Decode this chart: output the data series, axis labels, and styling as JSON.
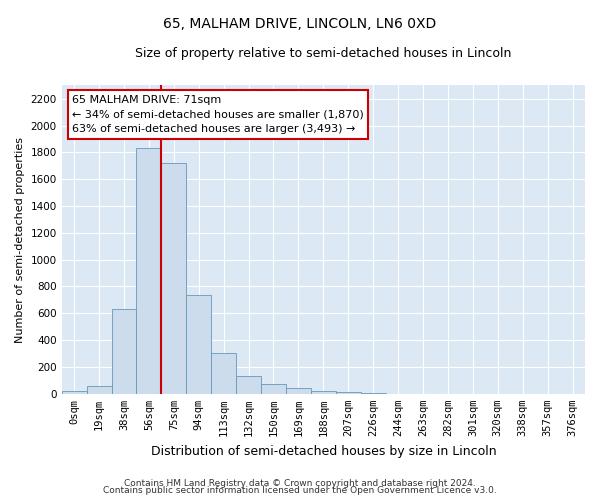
{
  "title": "65, MALHAM DRIVE, LINCOLN, LN6 0XD",
  "subtitle": "Size of property relative to semi-detached houses in Lincoln",
  "xlabel": "Distribution of semi-detached houses by size in Lincoln",
  "ylabel": "Number of semi-detached properties",
  "bar_labels": [
    "0sqm",
    "19sqm",
    "38sqm",
    "56sqm",
    "75sqm",
    "94sqm",
    "113sqm",
    "132sqm",
    "150sqm",
    "169sqm",
    "188sqm",
    "207sqm",
    "226sqm",
    "244sqm",
    "263sqm",
    "282sqm",
    "301sqm",
    "320sqm",
    "338sqm",
    "357sqm",
    "376sqm"
  ],
  "bar_values": [
    20,
    60,
    630,
    1830,
    1720,
    740,
    305,
    130,
    70,
    40,
    20,
    10,
    5,
    0,
    0,
    0,
    0,
    0,
    0,
    0,
    0
  ],
  "bar_color": "#ccdcec",
  "bar_edge_color": "#6699bb",
  "vline_x": 3.5,
  "vline_color": "#cc0000",
  "annotation_title": "65 MALHAM DRIVE: 71sqm",
  "annotation_line1": "← 34% of semi-detached houses are smaller (1,870)",
  "annotation_line2": "63% of semi-detached houses are larger (3,493) →",
  "annotation_box_facecolor": "#ffffff",
  "annotation_box_edgecolor": "#cc0000",
  "ylim": [
    0,
    2300
  ],
  "yticks": [
    0,
    200,
    400,
    600,
    800,
    1000,
    1200,
    1400,
    1600,
    1800,
    2000,
    2200
  ],
  "footer1": "Contains HM Land Registry data © Crown copyright and database right 2024.",
  "footer2": "Contains public sector information licensed under the Open Government Licence v3.0.",
  "plot_bg_color": "#dce9f5",
  "fig_bg_color": "#ffffff",
  "grid_color": "#ffffff",
  "title_fontsize": 10,
  "subtitle_fontsize": 9,
  "xlabel_fontsize": 9,
  "ylabel_fontsize": 8,
  "tick_fontsize": 7.5,
  "footer_fontsize": 6.5,
  "annot_fontsize": 8
}
